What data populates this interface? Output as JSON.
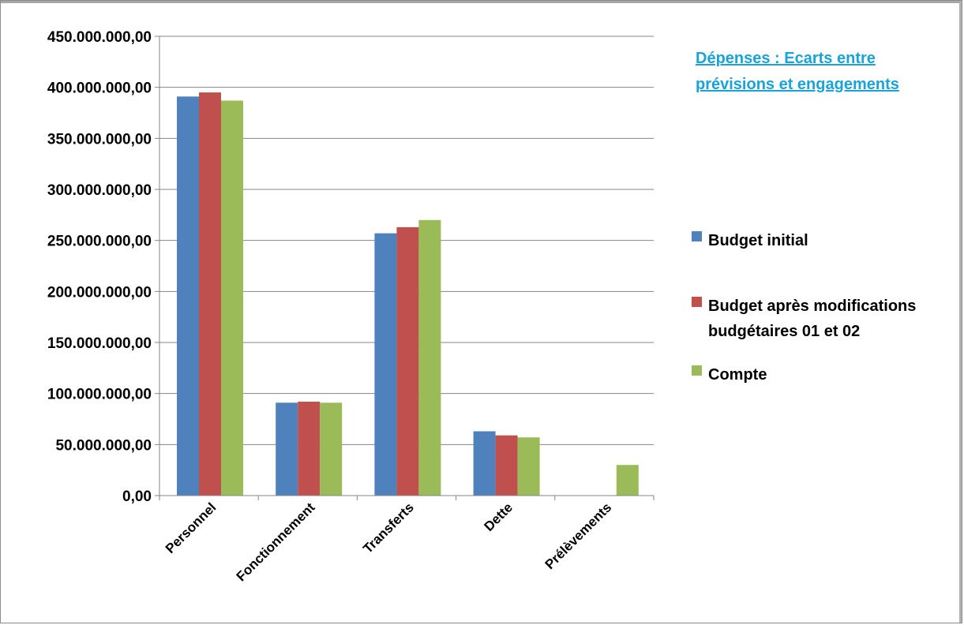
{
  "chart_data": {
    "type": "bar",
    "title_lines": [
      "Dépenses : Ecarts entre",
      "prévisions et engagements"
    ],
    "categories": [
      "Personnel",
      "Fonctionnement",
      "Transferts",
      "Dette",
      "Prélèvements"
    ],
    "series": [
      {
        "name": "Budget initial",
        "color": "#4f81bd",
        "values": [
          391000000,
          91000000,
          257000000,
          63000000,
          0
        ]
      },
      {
        "name": "Budget après modifications budgétaires 01 et 02",
        "color": "#c0504d",
        "values": [
          395000000,
          92000000,
          263000000,
          59000000,
          0
        ]
      },
      {
        "name": "Compte",
        "color": "#9bbb59",
        "values": [
          387000000,
          91000000,
          270000000,
          57000000,
          30000000
        ]
      }
    ],
    "legend_lines": [
      [
        "Budget initial"
      ],
      [
        "Budget après modifications",
        "budgétaires 01 et 02"
      ],
      [
        "Compte"
      ]
    ],
    "ylim": [
      0,
      450000000
    ],
    "yticks": [
      0,
      50000000,
      100000000,
      150000000,
      200000000,
      250000000,
      300000000,
      350000000,
      400000000,
      450000000
    ],
    "ytick_labels": [
      "0,00",
      "50.000.000,00",
      "100.000.000,00",
      "150.000.000,00",
      "200.000.000,00",
      "250.000.000,00",
      "300.000.000,00",
      "350.000.000,00",
      "400.000.000,00",
      "450.000.000,00"
    ],
    "grid": true,
    "legend_position": "right",
    "title_color": "#1aa3d9"
  }
}
